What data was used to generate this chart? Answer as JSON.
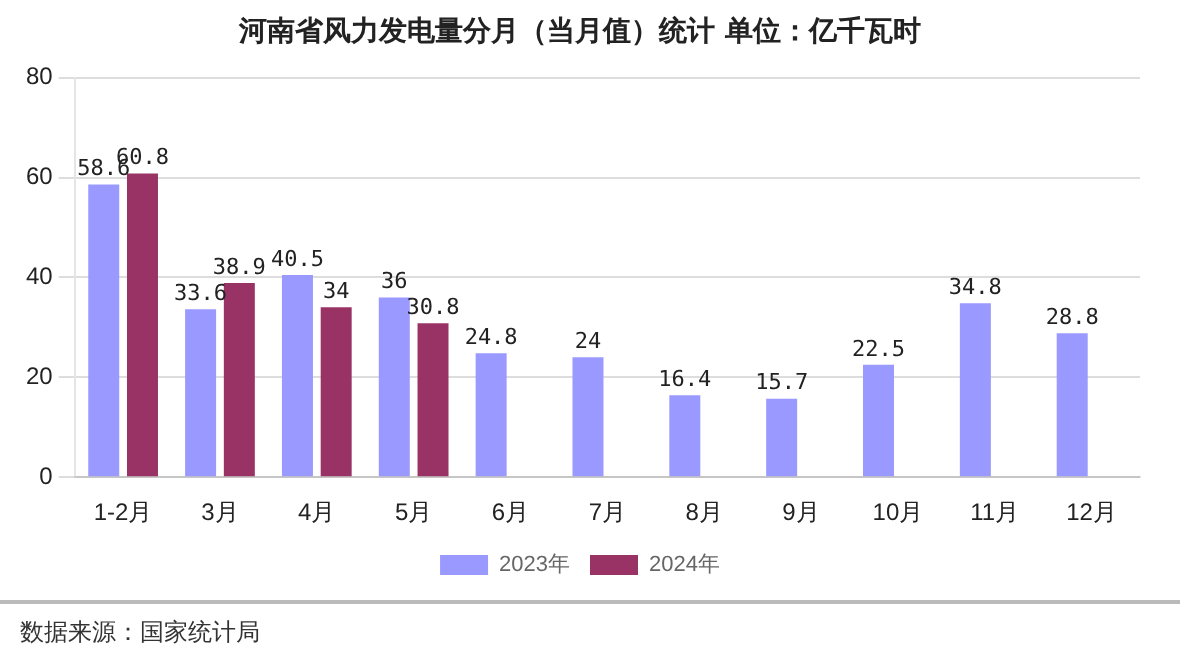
{
  "chart_data": {
    "type": "bar",
    "title": "河南省风力发电量分月（当月值）统计 单位：亿千瓦时",
    "categories": [
      "1-2月",
      "3月",
      "4月",
      "5月",
      "6月",
      "7月",
      "8月",
      "9月",
      "10月",
      "11月",
      "12月"
    ],
    "series": [
      {
        "name": "2023年",
        "color": "#9999ff",
        "values": [
          58.6,
          33.6,
          40.5,
          36,
          24.8,
          24,
          16.4,
          15.7,
          22.5,
          34.8,
          28.8
        ]
      },
      {
        "name": "2024年",
        "color": "#993366",
        "values": [
          60.8,
          38.9,
          34,
          30.8,
          null,
          null,
          null,
          null,
          null,
          null,
          null
        ]
      }
    ],
    "ylim": [
      0,
      80
    ],
    "yticks": [
      0,
      20,
      40,
      60,
      80
    ],
    "grid": "y",
    "legend": "bottom",
    "data_labels": true,
    "annotations": [
      "数据来源：国家统计局"
    ]
  }
}
